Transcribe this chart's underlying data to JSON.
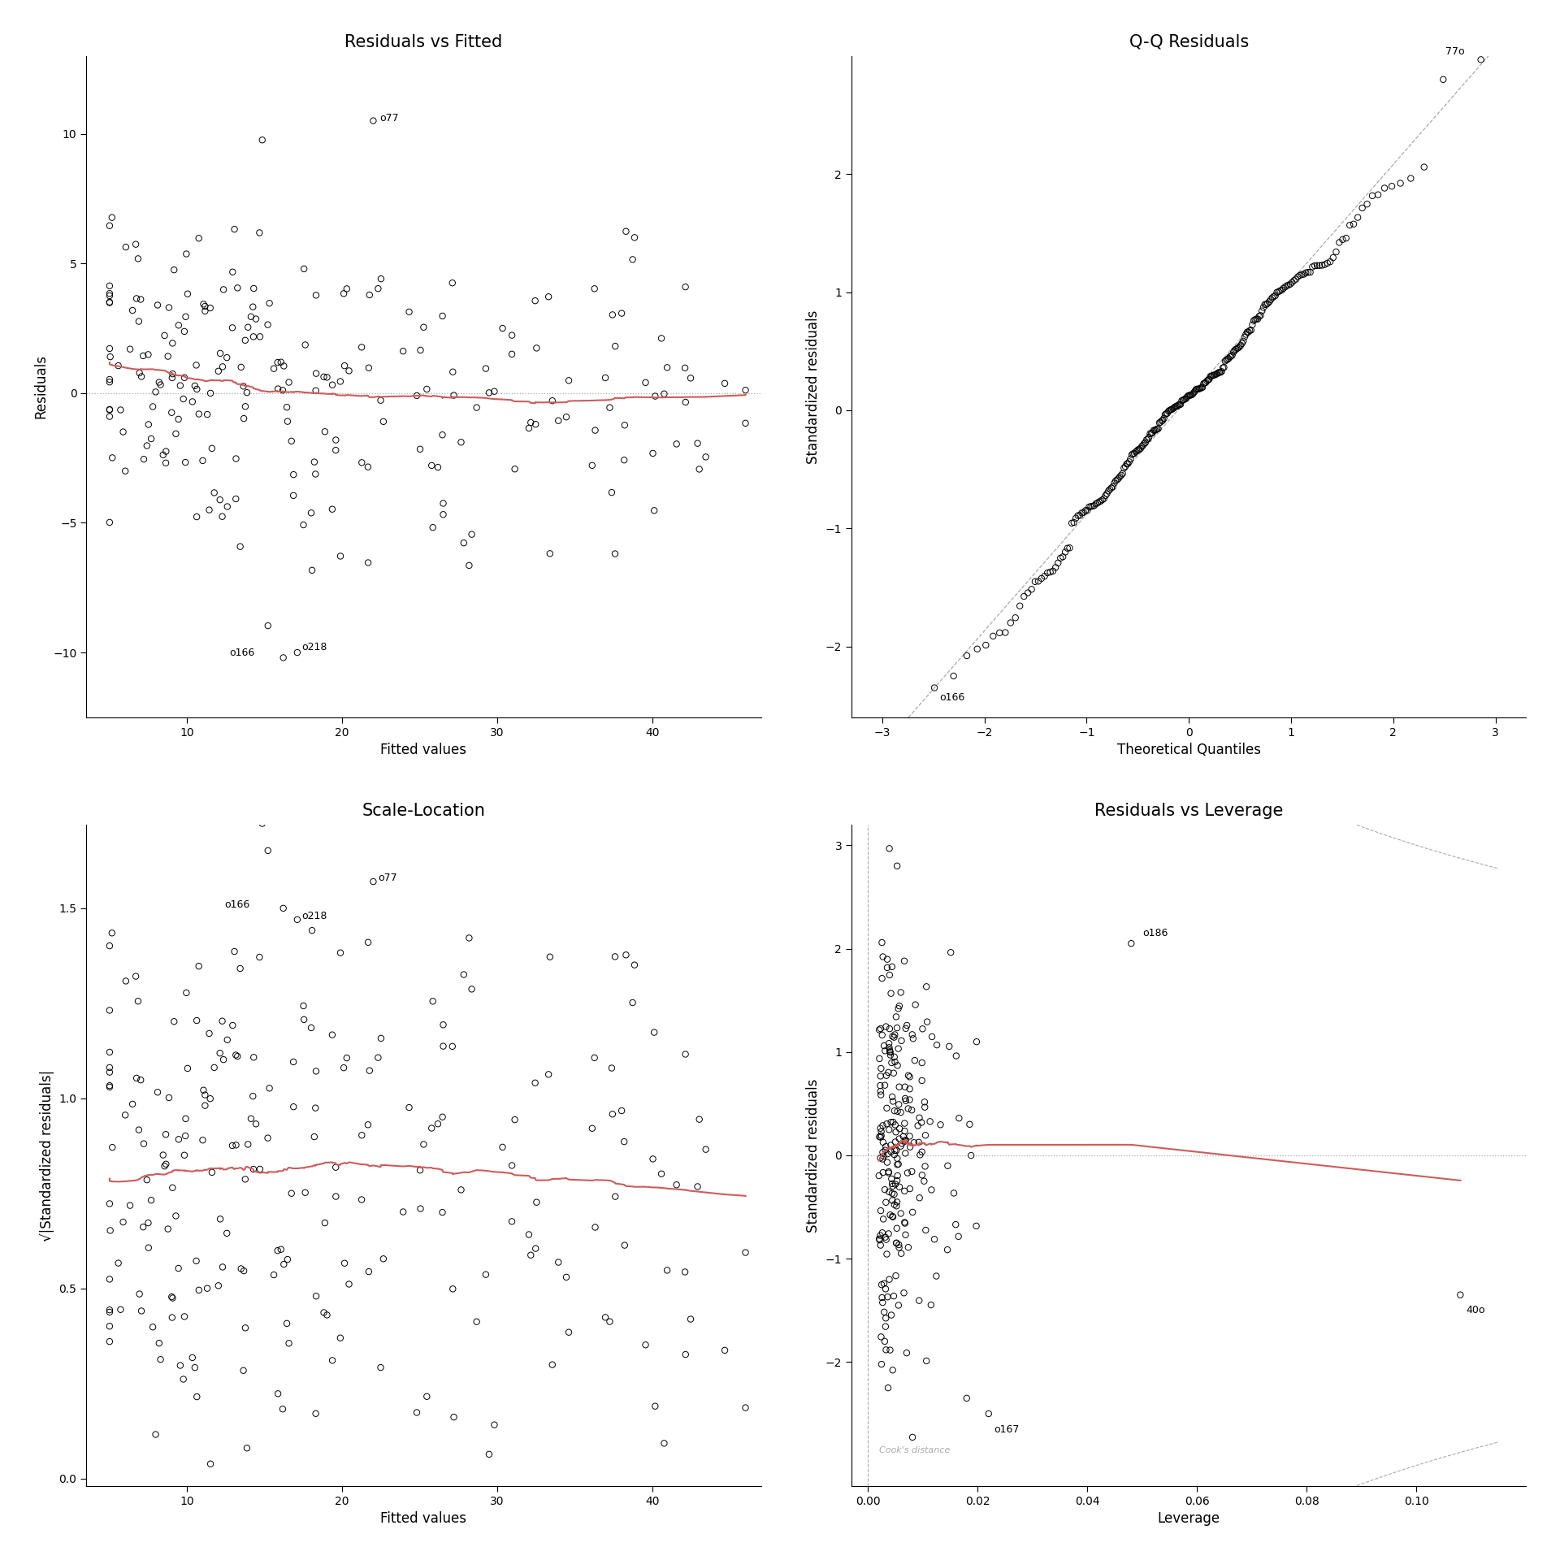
{
  "title1": "Residuals vs Fitted",
  "title2": "Q-Q Residuals",
  "title3": "Scale-Location",
  "title4": "Residuals vs Leverage",
  "xlabel1": "Fitted values",
  "ylabel1": "Residuals",
  "xlabel2": "Theoretical Quantiles",
  "ylabel2": "Standardized residuals",
  "xlabel3": "Fitted values",
  "ylabel3": "√|Standardized residuals|",
  "xlabel4": "Leverage",
  "ylabel4": "Standardized residuals",
  "red_color": "#cd5c5c",
  "dot_edge_color": "#000000",
  "bg_color": "#ffffff",
  "grid_color": "#aaaaaa"
}
